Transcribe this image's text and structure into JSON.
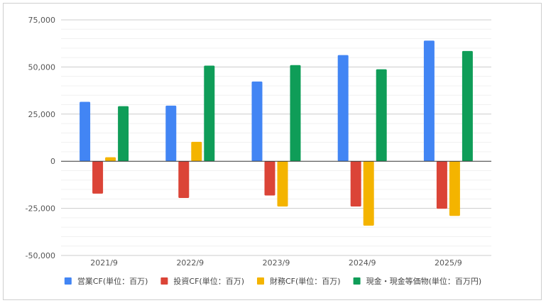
{
  "chart_data": {
    "type": "bar",
    "categories": [
      "2021/9",
      "2022/9",
      "2023/9",
      "2024/9",
      "2025/9"
    ],
    "series": [
      {
        "name": "営業CF(単位：百万)",
        "color": "#4285F4",
        "values": [
          31500,
          29500,
          42300,
          56300,
          64000
        ]
      },
      {
        "name": "投資CF(単位：百万)",
        "color": "#DB4437",
        "values": [
          -17200,
          -19500,
          -18200,
          -24000,
          -25200
        ]
      },
      {
        "name": "財務CF(単位：百万)",
        "color": "#F4B400",
        "values": [
          2100,
          10300,
          -24000,
          -34200,
          -29000
        ]
      },
      {
        "name": "現金・現金等価物(単位：百万円)",
        "color": "#0F9D58",
        "values": [
          29200,
          50700,
          51000,
          48800,
          58500
        ]
      }
    ],
    "yticks": [
      "75,000",
      "50,000",
      "25,000",
      "0",
      "-25,000",
      "-50,000"
    ],
    "ytick_values": [
      75000,
      50000,
      25000,
      0,
      -25000,
      -50000
    ],
    "ylim": [
      -50000,
      75000
    ],
    "grid": true,
    "legend_position": "bottom"
  }
}
